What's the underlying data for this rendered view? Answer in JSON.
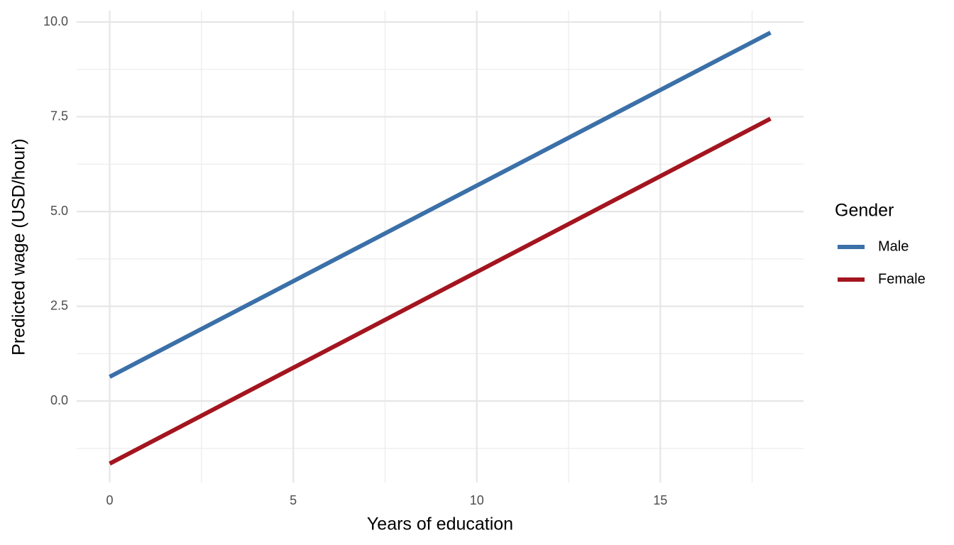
{
  "chart_data": {
    "type": "line",
    "x_label": "Years of education",
    "y_label": "Predicted wage (USD/hour)",
    "legend_title": "Gender",
    "legend_position": "right",
    "x": [
      0,
      18
    ],
    "series": [
      {
        "name": "Male",
        "color": "#3b70a8",
        "values": [
          0.64,
          9.72
        ]
      },
      {
        "name": "Female",
        "color": "#a3151f",
        "values": [
          -1.65,
          7.45
        ]
      }
    ],
    "xlim": [
      -0.9,
      18.9
    ],
    "ylim": [
      -2.15,
      10.3
    ],
    "xticks": [
      0,
      5,
      10,
      15
    ],
    "yticks": [
      {
        "value": 0,
        "label": "0.0"
      },
      2.5,
      {
        "value": 5,
        "label": "5.0"
      },
      7.5,
      {
        "value": 10,
        "label": "10.0"
      }
    ],
    "x_minor_ticks": [
      2.5,
      7.5,
      12.5,
      17.5
    ],
    "y_minor_ticks": [
      -1.25,
      1.25,
      3.75,
      6.25,
      8.75
    ],
    "grid": true
  }
}
